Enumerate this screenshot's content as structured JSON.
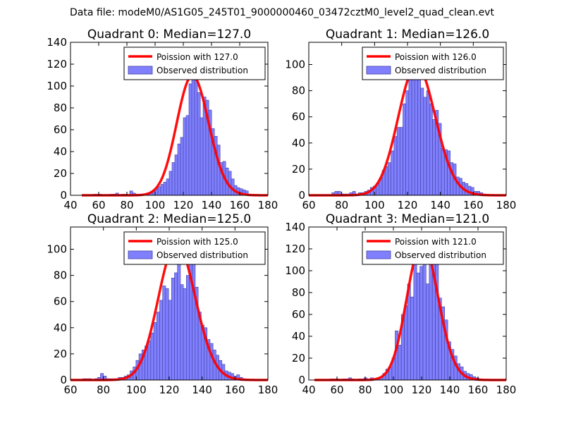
{
  "figure": {
    "suptitle": "Data file: modeM0/AS1G05_245T01_9000000460_03472cztM0_level2_quad_clean.evt"
  },
  "colors": {
    "hist_fill": "#8080ff",
    "hist_edge": "#4040a0",
    "poisson_line": "#ff0000",
    "axes": "#000000"
  },
  "chart_data": [
    {
      "type": "bar",
      "title": "Quadrant 0: Median=127.0",
      "xlim": [
        40,
        180
      ],
      "ylim": [
        0,
        140
      ],
      "xticks": [
        "40",
        "60",
        "80",
        "100",
        "120",
        "140",
        "160",
        "180"
      ],
      "yticks": [
        "0",
        "20",
        "40",
        "60",
        "80",
        "100",
        "120",
        "140"
      ],
      "legend_position": "top-right",
      "poisson_label": "Poission with 127.0",
      "hist_label": "Observed distribution",
      "poisson_mean": 127.0,
      "bin_width": 2.08,
      "bins": [
        [
          56,
          1
        ],
        [
          58,
          1
        ],
        [
          60,
          1
        ],
        [
          62,
          0
        ],
        [
          64,
          0
        ],
        [
          66,
          0
        ],
        [
          68,
          1
        ],
        [
          70,
          1
        ],
        [
          72,
          2
        ],
        [
          74,
          0
        ],
        [
          76,
          1
        ],
        [
          78,
          1
        ],
        [
          80,
          0
        ],
        [
          82,
          4
        ],
        [
          84,
          2
        ],
        [
          86,
          1
        ],
        [
          88,
          1
        ],
        [
          90,
          1
        ],
        [
          92,
          1
        ],
        [
          94,
          2
        ],
        [
          96,
          3
        ],
        [
          98,
          4
        ],
        [
          100,
          6
        ],
        [
          102,
          8
        ],
        [
          104,
          10
        ],
        [
          106,
          12
        ],
        [
          108,
          15
        ],
        [
          110,
          22
        ],
        [
          112,
          30
        ],
        [
          114,
          37
        ],
        [
          116,
          47
        ],
        [
          118,
          53
        ],
        [
          120,
          71
        ],
        [
          122,
          73
        ],
        [
          124,
          102
        ],
        [
          126,
          110
        ],
        [
          128,
          129
        ],
        [
          130,
          94
        ],
        [
          132,
          71
        ],
        [
          134,
          90
        ],
        [
          136,
          87
        ],
        [
          138,
          78
        ],
        [
          140,
          61
        ],
        [
          142,
          54
        ],
        [
          144,
          46
        ],
        [
          146,
          30
        ],
        [
          148,
          31
        ],
        [
          150,
          25
        ],
        [
          152,
          22
        ],
        [
          154,
          15
        ],
        [
          156,
          9
        ],
        [
          158,
          7
        ],
        [
          160,
          6
        ],
        [
          162,
          5
        ],
        [
          164,
          4
        ]
      ]
    },
    {
      "type": "bar",
      "title": "Quadrant 1: Median=126.0",
      "xlim": [
        60,
        180
      ],
      "ylim": [
        0,
        117
      ],
      "xticks": [
        "60",
        "80",
        "100",
        "120",
        "140",
        "160",
        "180"
      ],
      "yticks": [
        "0",
        "20",
        "40",
        "60",
        "80",
        "100"
      ],
      "legend_position": "top-right",
      "poisson_label": "Poission with 126.0",
      "hist_label": "Observed distribution",
      "poisson_mean": 126.0,
      "bin_width": 1.79,
      "bins": [
        [
          74,
          2
        ],
        [
          75.8,
          3
        ],
        [
          77.6,
          3
        ],
        [
          79.4,
          1
        ],
        [
          81.2,
          1
        ],
        [
          83,
          1
        ],
        [
          84.8,
          2
        ],
        [
          86.6,
          3
        ],
        [
          88.4,
          1
        ],
        [
          90.2,
          2
        ],
        [
          92,
          2
        ],
        [
          93.8,
          3
        ],
        [
          95.6,
          4
        ],
        [
          97.4,
          6
        ],
        [
          99.2,
          7
        ],
        [
          101,
          9
        ],
        [
          102.8,
          13
        ],
        [
          104.6,
          19
        ],
        [
          106.4,
          22
        ],
        [
          108.2,
          25
        ],
        [
          110,
          34
        ],
        [
          111.8,
          45
        ],
        [
          113.6,
          52
        ],
        [
          115.4,
          52
        ],
        [
          117.2,
          70
        ],
        [
          119,
          80
        ],
        [
          120.8,
          90
        ],
        [
          122.6,
          93
        ],
        [
          124.4,
          96
        ],
        [
          126.2,
          112
        ],
        [
          128,
          82
        ],
        [
          129.8,
          75
        ],
        [
          131.6,
          80
        ],
        [
          133.4,
          70
        ],
        [
          135.2,
          58
        ],
        [
          137,
          65
        ],
        [
          138.8,
          55
        ],
        [
          140.6,
          36
        ],
        [
          142.4,
          35
        ],
        [
          144.2,
          34
        ],
        [
          146,
          25
        ],
        [
          147.8,
          24
        ],
        [
          149.6,
          14
        ],
        [
          151.4,
          13
        ],
        [
          153.2,
          10
        ],
        [
          155,
          9
        ],
        [
          156.8,
          7
        ],
        [
          158.6,
          6
        ],
        [
          160.4,
          3
        ],
        [
          162.2,
          3
        ],
        [
          164,
          2
        ],
        [
          165.8,
          1
        ]
      ]
    },
    {
      "type": "bar",
      "title": "Quadrant 2: Median=125.0",
      "xlim": [
        60,
        180
      ],
      "ylim": [
        0,
        117
      ],
      "xticks": [
        "60",
        "80",
        "100",
        "120",
        "140",
        "160",
        "180"
      ],
      "yticks": [
        "0",
        "20",
        "40",
        "60",
        "80",
        "100"
      ],
      "legend_position": "top-right",
      "poisson_label": "Poission with 125.0",
      "hist_label": "Observed distribution",
      "poisson_mean": 125.0,
      "bin_width": 1.83,
      "bins": [
        [
          67.4,
          1
        ],
        [
          69.2,
          1
        ],
        [
          71,
          1
        ],
        [
          72.8,
          0
        ],
        [
          74.6,
          1
        ],
        [
          76.4,
          2
        ],
        [
          78.2,
          5
        ],
        [
          80,
          3
        ],
        [
          81.8,
          1
        ],
        [
          83.6,
          1
        ],
        [
          85.4,
          1
        ],
        [
          87.2,
          1
        ],
        [
          89,
          2
        ],
        [
          90.8,
          2
        ],
        [
          92.6,
          3
        ],
        [
          94.4,
          4
        ],
        [
          96.2,
          7
        ],
        [
          98,
          10
        ],
        [
          99.8,
          15
        ],
        [
          101.6,
          20
        ],
        [
          103.4,
          23
        ],
        [
          105.2,
          26
        ],
        [
          107,
          30
        ],
        [
          108.8,
          36
        ],
        [
          110.6,
          44
        ],
        [
          112.4,
          52
        ],
        [
          114.2,
          61
        ],
        [
          116,
          72
        ],
        [
          117.8,
          70
        ],
        [
          119.6,
          61
        ],
        [
          121.4,
          78
        ],
        [
          123.2,
          82
        ],
        [
          125,
          96
        ],
        [
          126.8,
          73
        ],
        [
          128.6,
          70
        ],
        [
          130.4,
          80
        ],
        [
          132.2,
          95
        ],
        [
          134,
          108
        ],
        [
          135.8,
          71
        ],
        [
          137.6,
          52
        ],
        [
          139.4,
          42
        ],
        [
          141.2,
          40
        ],
        [
          143,
          31
        ],
        [
          144.8,
          28
        ],
        [
          146.6,
          23
        ],
        [
          148.4,
          19
        ],
        [
          150.2,
          15
        ],
        [
          152,
          12
        ],
        [
          153.8,
          7
        ],
        [
          155.6,
          6
        ],
        [
          157.4,
          5
        ],
        [
          159.2,
          3
        ],
        [
          161,
          4
        ],
        [
          162.8,
          2
        ],
        [
          164.6,
          1
        ]
      ]
    },
    {
      "type": "bar",
      "title": "Quadrant 3: Median=121.0",
      "xlim": [
        40,
        180
      ],
      "ylim": [
        0,
        140
      ],
      "xticks": [
        "40",
        "60",
        "80",
        "100",
        "120",
        "140",
        "160",
        "180"
      ],
      "yticks": [
        "0",
        "20",
        "40",
        "60",
        "80",
        "100",
        "120",
        "140"
      ],
      "legend_position": "top-right",
      "poisson_label": "Poission with 121.0",
      "hist_label": "Observed distribution",
      "poisson_mean": 121.0,
      "bin_width": 2.15,
      "bins": [
        [
          55,
          1
        ],
        [
          57.2,
          1
        ],
        [
          59.4,
          1
        ],
        [
          61.6,
          0
        ],
        [
          63.8,
          1
        ],
        [
          66,
          1
        ],
        [
          68.2,
          2
        ],
        [
          70.4,
          1
        ],
        [
          72.6,
          0
        ],
        [
          74.8,
          1
        ],
        [
          77,
          1
        ],
        [
          79.2,
          2
        ],
        [
          81.4,
          0
        ],
        [
          83.6,
          2
        ],
        [
          85.8,
          1
        ],
        [
          88,
          2
        ],
        [
          90.2,
          2
        ],
        [
          92.4,
          6
        ],
        [
          94.6,
          10
        ],
        [
          96.8,
          12
        ],
        [
          99,
          20
        ],
        [
          101.2,
          45
        ],
        [
          103.4,
          32
        ],
        [
          105.6,
          60
        ],
        [
          107.8,
          68
        ],
        [
          110,
          88
        ],
        [
          112.2,
          76
        ],
        [
          114.4,
          108
        ],
        [
          116.6,
          98
        ],
        [
          118.8,
          104
        ],
        [
          121,
          108
        ],
        [
          123.2,
          88
        ],
        [
          125.4,
          106
        ],
        [
          127.6,
          113
        ],
        [
          129.8,
          120
        ],
        [
          132,
          75
        ],
        [
          134.2,
          67
        ],
        [
          136.4,
          55
        ],
        [
          138.6,
          35
        ],
        [
          140.8,
          28
        ],
        [
          143,
          22
        ],
        [
          145.2,
          15
        ],
        [
          147.4,
          12
        ],
        [
          149.6,
          8
        ],
        [
          151.8,
          6
        ],
        [
          154,
          5
        ],
        [
          156.2,
          3
        ],
        [
          158.4,
          2
        ],
        [
          160.6,
          1
        ]
      ]
    }
  ]
}
